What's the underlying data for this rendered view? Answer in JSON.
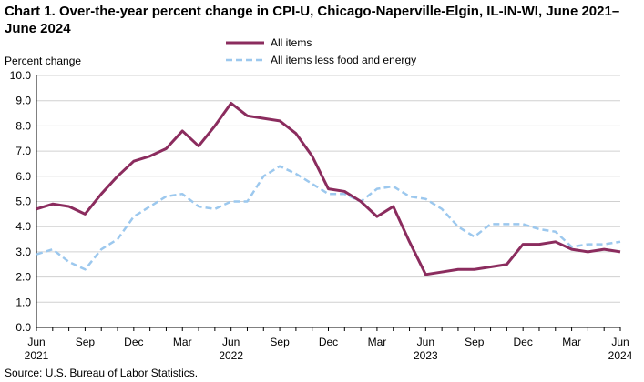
{
  "chart_data": {
    "type": "line",
    "title": "Chart 1. Over-the-year percent change in CPI-U, Chicago-Naperville-Elgin,  IL-IN-WI, June 2021–June 2024",
    "ylabel": "Percent change",
    "xlabel": "",
    "ylim": [
      0,
      10
    ],
    "y_ticks": [
      "0.0",
      "1.0",
      "2.0",
      "3.0",
      "4.0",
      "5.0",
      "6.0",
      "7.0",
      "8.0",
      "9.0",
      "10.0"
    ],
    "grid": true,
    "legend_position": "top-center",
    "x": [
      "Jun 2021",
      "Jul 2021",
      "Aug 2021",
      "Sep 2021",
      "Oct 2021",
      "Nov 2021",
      "Dec 2021",
      "Jan 2022",
      "Feb 2022",
      "Mar 2022",
      "Apr 2022",
      "May 2022",
      "Jun 2022",
      "Jul 2022",
      "Aug 2022",
      "Sep 2022",
      "Oct 2022",
      "Nov 2022",
      "Dec 2022",
      "Jan 2023",
      "Feb 2023",
      "Mar 2023",
      "Apr 2023",
      "May 2023",
      "Jun 2023",
      "Jul 2023",
      "Aug 2023",
      "Sep 2023",
      "Oct 2023",
      "Nov 2023",
      "Dec 2023",
      "Jan 2024",
      "Feb 2024",
      "Mar 2024",
      "Apr 2024",
      "May 2024",
      "Jun 2024"
    ],
    "x_tick_labels": [
      {
        "index": 0,
        "line1": "Jun",
        "line2": "2021"
      },
      {
        "index": 3,
        "line1": "Sep",
        "line2": ""
      },
      {
        "index": 6,
        "line1": "Dec",
        "line2": ""
      },
      {
        "index": 9,
        "line1": "Mar",
        "line2": ""
      },
      {
        "index": 12,
        "line1": "Jun",
        "line2": "2022"
      },
      {
        "index": 15,
        "line1": "Sep",
        "line2": ""
      },
      {
        "index": 18,
        "line1": "Dec",
        "line2": ""
      },
      {
        "index": 21,
        "line1": "Mar",
        "line2": ""
      },
      {
        "index": 24,
        "line1": "Jun",
        "line2": "2023"
      },
      {
        "index": 27,
        "line1": "Sep",
        "line2": ""
      },
      {
        "index": 30,
        "line1": "Dec",
        "line2": ""
      },
      {
        "index": 33,
        "line1": "Mar",
        "line2": ""
      },
      {
        "index": 36,
        "line1": "Jun",
        "line2": "2024"
      }
    ],
    "series": [
      {
        "name": "All items",
        "color": "#8b2c5e",
        "dash": "solid",
        "values": [
          4.7,
          4.9,
          4.8,
          4.5,
          5.3,
          6.0,
          6.6,
          6.8,
          7.1,
          7.8,
          7.2,
          8.0,
          8.9,
          8.4,
          8.3,
          8.2,
          7.7,
          6.8,
          5.5,
          5.4,
          5.0,
          4.4,
          4.8,
          3.4,
          2.1,
          2.2,
          2.3,
          2.3,
          2.4,
          2.5,
          3.3,
          3.3,
          3.4,
          3.1,
          3.0,
          3.1,
          3.0
        ]
      },
      {
        "name": "All items less food and energy",
        "color": "#9cc8ee",
        "dash": "dashed",
        "values": [
          2.9,
          3.1,
          2.6,
          2.3,
          3.1,
          3.5,
          4.4,
          4.8,
          5.2,
          5.3,
          4.8,
          4.7,
          5.0,
          5.0,
          6.0,
          6.4,
          6.1,
          5.7,
          5.3,
          5.3,
          5.0,
          5.5,
          5.6,
          5.2,
          5.1,
          4.7,
          4.0,
          3.6,
          4.1,
          4.1,
          4.1,
          3.9,
          3.8,
          3.2,
          3.3,
          3.3,
          3.4
        ]
      }
    ]
  },
  "footer": {
    "source": "Source: U.S. Bureau  of Labor Statistics."
  }
}
